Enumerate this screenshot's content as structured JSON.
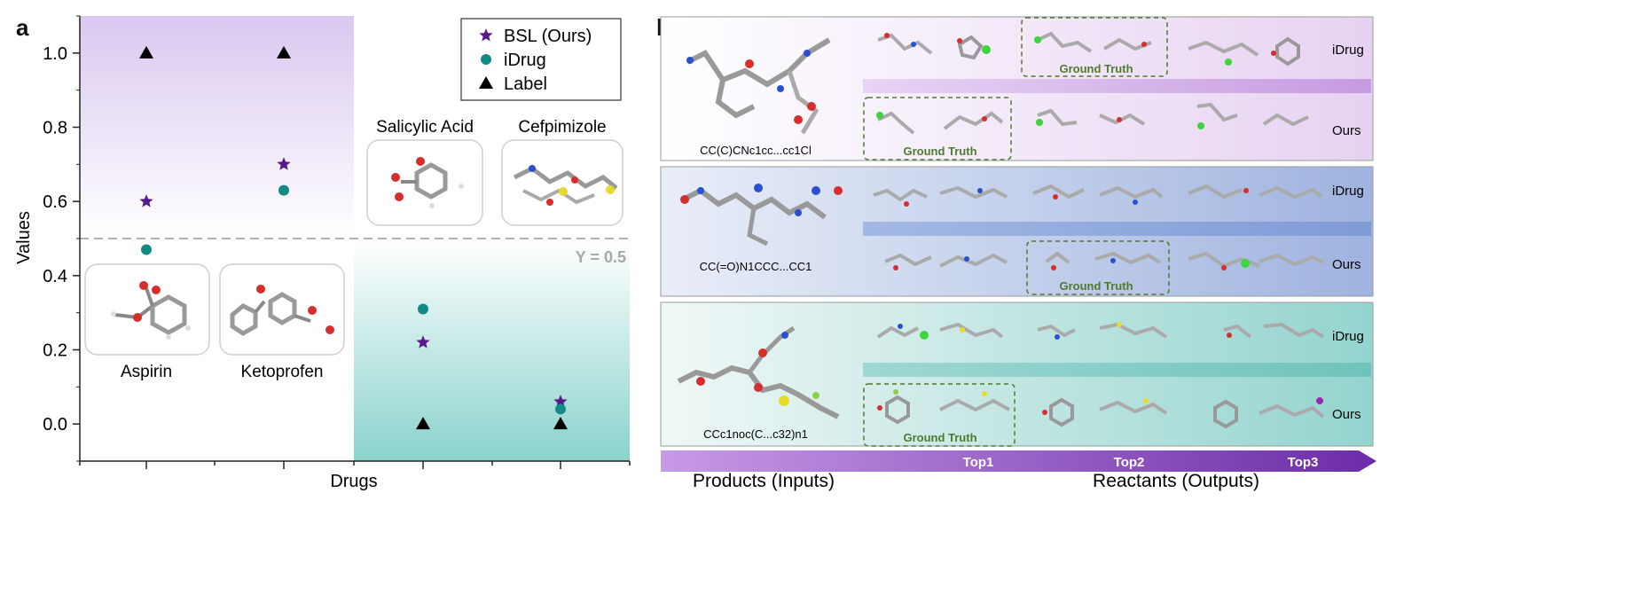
{
  "panel_a": {
    "label": "a",
    "chart_data": {
      "type": "scatter",
      "xlabel": "Drugs",
      "ylabel": "Values",
      "ylim": [
        -0.1,
        1.1
      ],
      "yticks": [
        "0.0",
        "0.2",
        "0.4",
        "0.6",
        "0.8",
        "1.0"
      ],
      "categories": [
        "Aspirin",
        "Ketoprofen",
        "Salicylic Acid",
        "Cefpimizole"
      ],
      "series": [
        {
          "name": "BSL (Ours)",
          "marker": "star",
          "color": "#5b1a8c",
          "values": [
            0.6,
            0.7,
            0.22,
            0.06
          ]
        },
        {
          "name": "iDrug",
          "marker": "circle",
          "color": "#138a86",
          "values": [
            0.47,
            0.63,
            0.31,
            0.04
          ]
        },
        {
          "name": "Label",
          "marker": "triangle",
          "color": "#000000",
          "values": [
            1.0,
            1.0,
            0.0,
            0.0
          ]
        }
      ],
      "threshold": {
        "value": 0.5,
        "label": "Y = 0.5"
      },
      "legend_position": "top-right",
      "colors": {
        "upper_region": "#dccdf0",
        "lower_region": "#8fd3ce",
        "threshold_line": "#b0b0b0"
      }
    }
  },
  "panel_b": {
    "label": "b",
    "rows": [
      {
        "smiles": "CC(C)CNc1cc...cc1Cl",
        "top_label": "iDrug",
        "bottom_label": "Ours",
        "ground_truth": "Ground Truth",
        "ground_truth_2": "Ground Truth"
      },
      {
        "smiles": "CC(=O)N1CCC...CC1",
        "top_label": "iDrug",
        "bottom_label": "Ours",
        "ground_truth": "Ground Truth"
      },
      {
        "smiles": "CCc1noc(C...c32)n1",
        "top_label": "iDrug",
        "bottom_label": "Ours",
        "ground_truth": "Ground Truth"
      }
    ],
    "arrow": {
      "top1": "Top1",
      "top2": "Top2",
      "top3": "Top3"
    },
    "footer": {
      "inputs": "Products (Inputs)",
      "outputs": "Reactants (Outputs)"
    },
    "colors": {
      "row1": "#f0e6f6",
      "row2": "#b7c6e6",
      "row3": "#b9e2de",
      "arrow": "#8a4cc0",
      "ground_truth": "#4e7a2e"
    }
  }
}
